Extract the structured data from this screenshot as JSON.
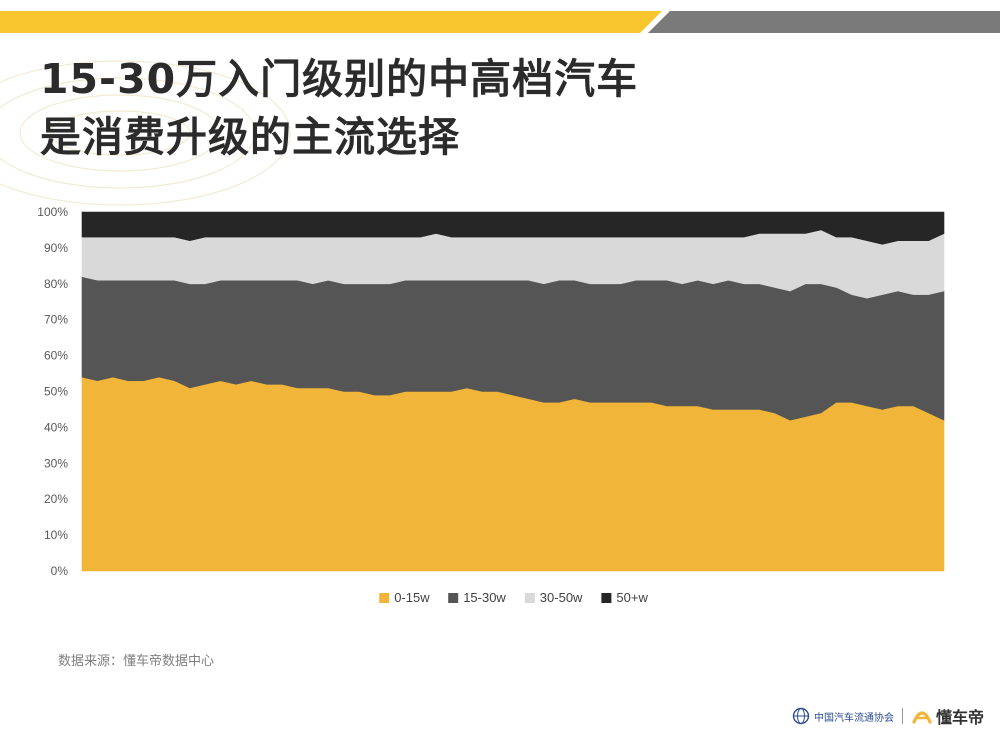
{
  "page": {
    "title_line1": "15-30万入门级别的中高档汽车",
    "title_line2": "是消费升级的主流选择",
    "source": "数据来源：懂车帝数据中心",
    "association_name": "中国汽车流通协会",
    "brand_name": "懂车帝",
    "colors": {
      "accent_yellow": "#f7c52e",
      "bar_gray": "#7a7a7a",
      "title": "#2b2b2b"
    }
  },
  "chart_data": {
    "type": "area",
    "stacked": true,
    "normalized": true,
    "title": "",
    "xlabel": "",
    "ylabel": "",
    "ylim": [
      0,
      100
    ],
    "y_ticks": [
      "0%",
      "10%",
      "20%",
      "30%",
      "40%",
      "50%",
      "60%",
      "70%",
      "80%",
      "90%",
      "100%"
    ],
    "grid": false,
    "legend_position": "bottom",
    "series": [
      {
        "name": "0-15w",
        "color": "#f1b53a",
        "values": [
          54,
          53,
          54,
          53,
          53,
          54,
          53,
          51,
          52,
          53,
          52,
          53,
          52,
          52,
          51,
          51,
          51,
          50,
          50,
          49,
          49,
          50,
          50,
          50,
          50,
          51,
          50,
          50,
          49,
          48,
          47,
          47,
          48,
          47,
          47,
          47,
          47,
          47,
          46,
          46,
          46,
          45,
          45,
          45,
          45,
          44,
          42,
          43,
          44,
          47,
          47,
          46,
          45,
          46,
          46,
          44,
          42
        ]
      },
      {
        "name": "15-30w",
        "color": "#555555",
        "values": [
          28,
          28,
          27,
          28,
          28,
          27,
          28,
          29,
          28,
          28,
          29,
          28,
          29,
          29,
          30,
          29,
          30,
          30,
          30,
          31,
          31,
          31,
          31,
          31,
          31,
          30,
          31,
          31,
          32,
          33,
          33,
          34,
          33,
          33,
          33,
          33,
          34,
          34,
          35,
          34,
          35,
          35,
          36,
          35,
          35,
          35,
          36,
          37,
          36,
          32,
          30,
          30,
          32,
          32,
          31,
          33,
          36
        ]
      },
      {
        "name": "30-50w",
        "color": "#d9d9d9",
        "values": [
          11,
          12,
          12,
          12,
          12,
          12,
          12,
          12,
          13,
          12,
          12,
          12,
          12,
          12,
          12,
          13,
          12,
          13,
          13,
          13,
          13,
          12,
          12,
          13,
          12,
          12,
          12,
          12,
          12,
          12,
          13,
          12,
          12,
          13,
          13,
          13,
          12,
          12,
          12,
          13,
          12,
          13,
          12,
          13,
          14,
          15,
          16,
          14,
          15,
          14,
          16,
          16,
          14,
          14,
          15,
          15,
          16
        ]
      },
      {
        "name": "50+w",
        "color": "#262626",
        "values": [
          7,
          7,
          7,
          7,
          7,
          7,
          7,
          8,
          7,
          7,
          7,
          7,
          7,
          7,
          7,
          7,
          7,
          7,
          7,
          7,
          7,
          7,
          7,
          6,
          7,
          7,
          7,
          7,
          7,
          7,
          7,
          7,
          7,
          7,
          7,
          7,
          7,
          7,
          7,
          7,
          7,
          7,
          7,
          7,
          6,
          6,
          6,
          6,
          5,
          7,
          7,
          8,
          9,
          8,
          8,
          8,
          6
        ]
      }
    ]
  }
}
